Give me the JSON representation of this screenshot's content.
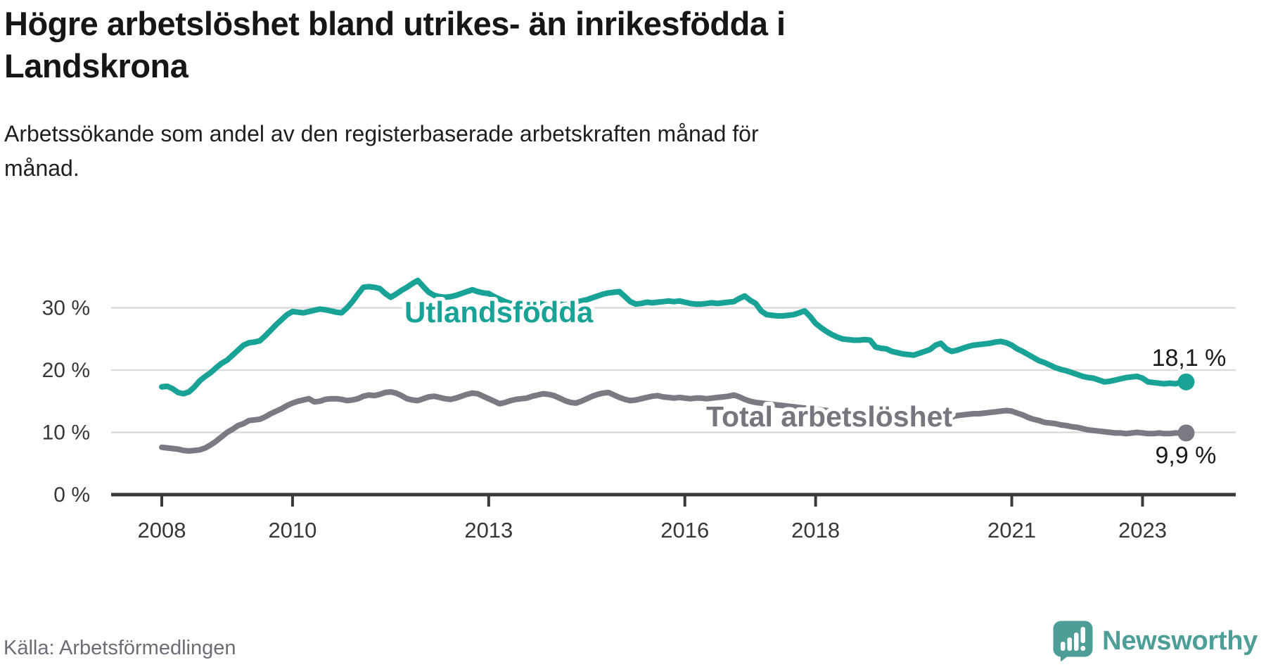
{
  "title": "Högre arbetslöshet bland utrikes- än inrikesfödda i\nLandskrona",
  "subtitle": "Arbetssökande som andel av den registerbaserade arbetskraften månad för\nmånad.",
  "source": "Källa: Arbetsförmedlingen",
  "brand": {
    "name": "Newsworthy",
    "icon": "newsworthy-speech-bubble-chart-icon",
    "color": "#4d9e97"
  },
  "colors": {
    "utlandsfodda_line": "#19a296",
    "total_line": "#7a7a82",
    "total_label": "#76767e",
    "axis": "#3a3a3a",
    "grid": "#dcdcdc",
    "tick_text": "#383838",
    "end_label_text": "#1a1a1a"
  },
  "chart_data": {
    "type": "line",
    "title": "Högre arbetslöshet bland utrikes- än inrikesfödda i Landskrona",
    "xlabel": "",
    "ylabel": "Arbetssökande som andel av den registerbaserade arbetskraften",
    "frequency": "monthly",
    "x_start": "2008-01",
    "x_end": "2023-09",
    "ylim": [
      0,
      36
    ],
    "grid": "horizontal",
    "yticks": [
      0,
      10,
      20,
      30
    ],
    "ytick_labels": [
      "0 %",
      "10 %",
      "20 %",
      "30 %"
    ],
    "xticks": [
      {
        "label": "2008",
        "month_index": 0
      },
      {
        "label": "2010",
        "month_index": 24
      },
      {
        "label": "2013",
        "month_index": 60
      },
      {
        "label": "2016",
        "month_index": 96
      },
      {
        "label": "2018",
        "month_index": 120
      },
      {
        "label": "2021",
        "month_index": 156
      },
      {
        "label": "2023",
        "month_index": 180
      }
    ],
    "series": [
      {
        "name": "Utlandsfödda",
        "color": "#19a296",
        "end_value": 18.1,
        "end_label": "18,1 %",
        "values": [
          17.3,
          17.4,
          17.0,
          16.4,
          16.2,
          16.5,
          17.3,
          18.3,
          19.0,
          19.6,
          20.4,
          21.1,
          21.6,
          22.4,
          23.2,
          24.0,
          24.4,
          24.5,
          24.7,
          25.5,
          26.4,
          27.3,
          28.1,
          28.9,
          29.4,
          29.3,
          29.2,
          29.4,
          29.6,
          29.8,
          29.7,
          29.5,
          29.3,
          29.2,
          30.0,
          31.0,
          32.2,
          33.3,
          33.4,
          33.3,
          33.1,
          32.3,
          31.7,
          32.2,
          32.8,
          33.3,
          33.9,
          34.4,
          33.4,
          32.5,
          32.0,
          31.8,
          31.7,
          31.8,
          32.0,
          32.3,
          32.6,
          32.9,
          32.6,
          32.4,
          32.3,
          31.8,
          31.4,
          31.0,
          30.7,
          30.5,
          30.4,
          30.5,
          30.7,
          30.8,
          30.6,
          30.4,
          30.5,
          30.6,
          30.5,
          30.7,
          30.9,
          31.1,
          31.3,
          31.6,
          31.9,
          32.2,
          32.4,
          32.5,
          32.6,
          31.8,
          31.0,
          30.6,
          30.7,
          30.9,
          30.8,
          30.9,
          31.0,
          31.1,
          31.0,
          31.1,
          30.9,
          30.7,
          30.6,
          30.6,
          30.7,
          30.8,
          30.7,
          30.8,
          30.9,
          31.0,
          31.5,
          31.9,
          31.2,
          30.7,
          29.5,
          28.9,
          28.8,
          28.7,
          28.7,
          28.8,
          28.9,
          29.2,
          29.5,
          28.6,
          27.5,
          26.8,
          26.2,
          25.7,
          25.3,
          25.0,
          24.9,
          24.8,
          24.8,
          24.9,
          24.8,
          23.7,
          23.5,
          23.4,
          23.0,
          22.8,
          22.6,
          22.5,
          22.4,
          22.7,
          23.0,
          23.3,
          24.0,
          24.3,
          23.4,
          23.0,
          23.2,
          23.5,
          23.8,
          24.0,
          24.1,
          24.2,
          24.3,
          24.5,
          24.6,
          24.4,
          24.0,
          23.4,
          23.0,
          22.5,
          22.0,
          21.5,
          21.2,
          20.8,
          20.4,
          20.1,
          19.9,
          19.6,
          19.3,
          19.0,
          18.8,
          18.7,
          18.4,
          18.1,
          18.2,
          18.4,
          18.6,
          18.8,
          18.9,
          19.0,
          18.7,
          18.1,
          18.0,
          17.9,
          17.8,
          17.9,
          17.8,
          18.0,
          18.1
        ]
      },
      {
        "name": "Total arbetslöshet",
        "color": "#7a7a82",
        "end_value": 9.9,
        "end_label": "9,9 %",
        "values": [
          7.6,
          7.5,
          7.4,
          7.3,
          7.1,
          7.0,
          7.1,
          7.2,
          7.5,
          8.0,
          8.6,
          9.3,
          10.0,
          10.5,
          11.1,
          11.4,
          11.9,
          12.0,
          12.1,
          12.5,
          13.0,
          13.4,
          13.8,
          14.3,
          14.7,
          15.0,
          15.2,
          15.4,
          14.9,
          15.0,
          15.3,
          15.4,
          15.4,
          15.3,
          15.1,
          15.2,
          15.4,
          15.8,
          16.0,
          15.9,
          16.1,
          16.4,
          16.5,
          16.3,
          15.9,
          15.4,
          15.2,
          15.1,
          15.4,
          15.7,
          15.8,
          15.6,
          15.4,
          15.3,
          15.5,
          15.8,
          16.1,
          16.3,
          16.2,
          15.8,
          15.4,
          15.0,
          14.6,
          14.8,
          15.1,
          15.3,
          15.4,
          15.5,
          15.8,
          16.0,
          16.2,
          16.1,
          15.9,
          15.5,
          15.1,
          14.8,
          14.7,
          15.0,
          15.4,
          15.8,
          16.1,
          16.3,
          16.4,
          16.0,
          15.6,
          15.3,
          15.1,
          15.2,
          15.4,
          15.6,
          15.8,
          15.9,
          15.7,
          15.6,
          15.5,
          15.6,
          15.5,
          15.4,
          15.5,
          15.5,
          15.4,
          15.5,
          15.6,
          15.7,
          15.8,
          16.0,
          15.7,
          15.3,
          15.0,
          14.8,
          14.7,
          14.6,
          14.5,
          14.4,
          14.3,
          14.2,
          14.1,
          14.0,
          13.9,
          13.8,
          13.7,
          13.6,
          13.5,
          13.4,
          13.2,
          13.1,
          13.0,
          12.9,
          12.8,
          12.7,
          12.7,
          12.6,
          12.5,
          12.5,
          12.4,
          12.4,
          12.3,
          12.3,
          12.3,
          12.4,
          12.3,
          12.4,
          12.5,
          12.4,
          12.4,
          12.5,
          12.7,
          12.8,
          12.9,
          13.0,
          13.0,
          13.1,
          13.2,
          13.3,
          13.4,
          13.5,
          13.4,
          13.1,
          12.8,
          12.4,
          12.1,
          11.9,
          11.6,
          11.5,
          11.4,
          11.2,
          11.1,
          10.9,
          10.8,
          10.6,
          10.4,
          10.3,
          10.2,
          10.1,
          10.0,
          9.9,
          9.9,
          9.8,
          9.9,
          10.0,
          9.9,
          9.8,
          9.8,
          9.9,
          9.8,
          9.8,
          9.9,
          9.9,
          9.9
        ]
      }
    ]
  }
}
